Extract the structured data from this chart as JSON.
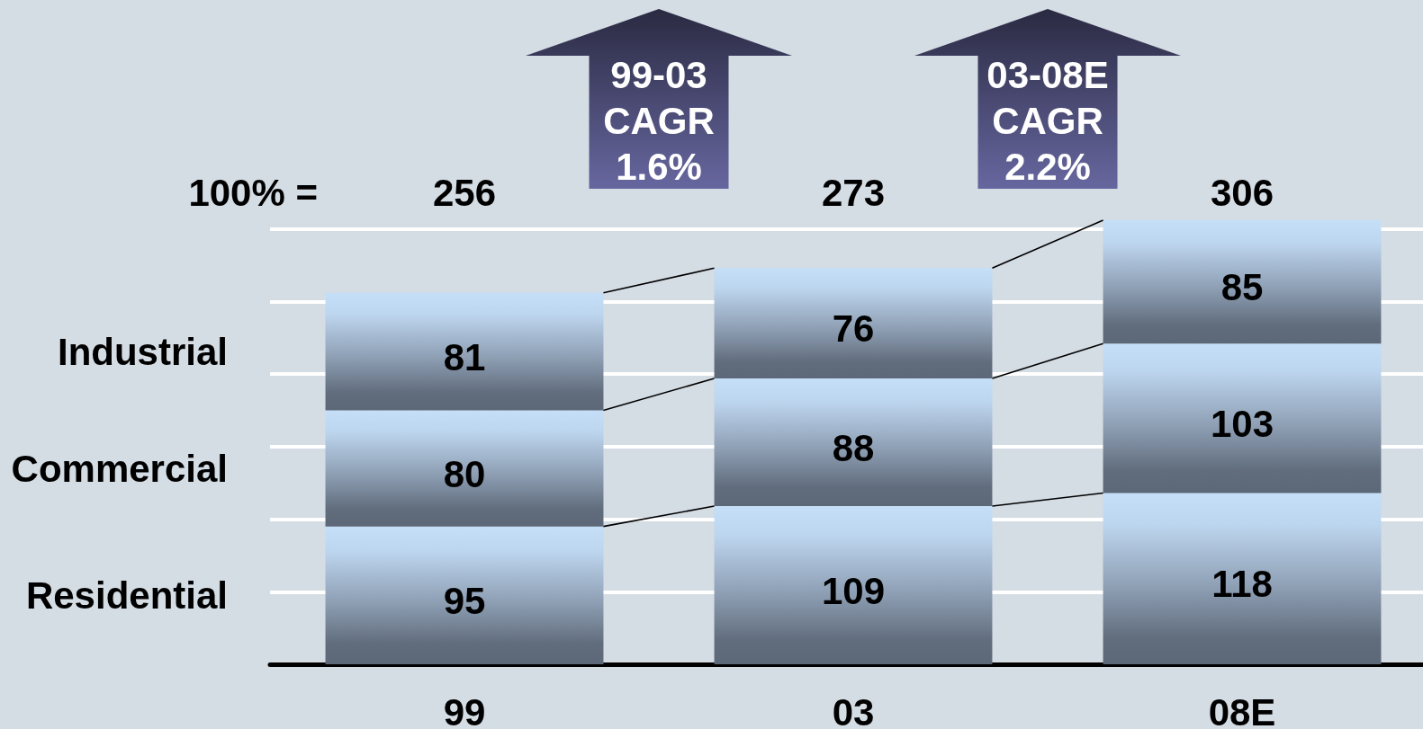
{
  "chart_data": {
    "type": "bar",
    "categories": [
      "99",
      "03",
      "08E"
    ],
    "series": [
      {
        "name": "Residential",
        "color": "#8e9fb4",
        "values": [
          95,
          109,
          118
        ]
      },
      {
        "name": "Commercial",
        "color": "#8e9fb4",
        "values": [
          80,
          88,
          103
        ]
      },
      {
        "name": "Industrial",
        "color": "#8e9fb4",
        "values": [
          81,
          76,
          85
        ]
      }
    ],
    "stacked": true,
    "data_labels": true,
    "totals": [
      "256",
      "273",
      "306"
    ],
    "annotations": [
      "100% =",
      "99-03\nCAGR\n1.6%",
      "03-08E\nCAGR\n2.2%"
    ],
    "yticks": [
      {
        "value": 50,
        "label": null
      },
      {
        "value": 100,
        "label": null
      },
      {
        "value": 150,
        "label": null
      },
      {
        "value": 200,
        "label": null
      },
      {
        "value": 250,
        "label": null
      },
      {
        "value": 300,
        "label": null
      }
    ],
    "tick_labels": "x",
    "grid": "y",
    "legend": "left"
  }
}
